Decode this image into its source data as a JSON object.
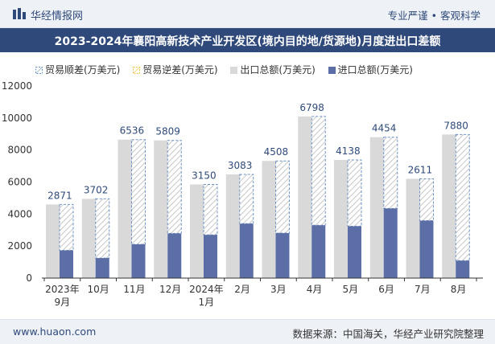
{
  "header": {
    "brand": "华经情报网",
    "tagline": "专业严谨 • 客观科学",
    "title": "2023-2024年襄阳高新技术产业开发区(境内目的地/货源地)月度进出口差额"
  },
  "legend": {
    "surplus": "贸易顺差(万美元)",
    "deficit": "贸易逆差(万美元)",
    "export": "出口总额(万美元)",
    "import": "进口总额(万美元)"
  },
  "footer": {
    "site": "www.huaon.com",
    "source": "数据来源：中国海关，华经产业研究院整理"
  },
  "colors": {
    "export": "#d9d9d9",
    "import": "#5b6ea6",
    "surplus": "#6f94c4",
    "deficit": "#f0c445",
    "label": "#2f4a7a"
  },
  "chart_data": {
    "type": "bar",
    "categories": [
      [
        "2023年",
        "9月"
      ],
      [
        "10月"
      ],
      [
        "11月"
      ],
      [
        "12月"
      ],
      [
        "2024年",
        "1月"
      ],
      [
        "2月"
      ],
      [
        "3月"
      ],
      [
        "4月"
      ],
      [
        "5月"
      ],
      [
        "6月"
      ],
      [
        "7月"
      ],
      [
        "8月"
      ]
    ],
    "series": [
      {
        "name": "出口总额(万美元)",
        "values": [
          4600,
          4950,
          8650,
          8600,
          5850,
          6480,
          7320,
          10100,
          7380,
          8800,
          6200,
          8970
        ]
      },
      {
        "name": "进口总额(万美元)",
        "values": [
          1730,
          1250,
          2110,
          2790,
          2700,
          3400,
          2810,
          3300,
          3240,
          4350,
          3590,
          1090
        ]
      },
      {
        "name": "贸易顺差(万美元)",
        "values": [
          2871,
          3702,
          6536,
          5809,
          3150,
          3083,
          4508,
          6798,
          4138,
          4454,
          2611,
          7880
        ]
      }
    ],
    "ylim": [
      0,
      12000
    ],
    "yticks": [
      0,
      2000,
      4000,
      6000,
      8000,
      10000,
      12000
    ],
    "grid": false,
    "legend": "top"
  }
}
